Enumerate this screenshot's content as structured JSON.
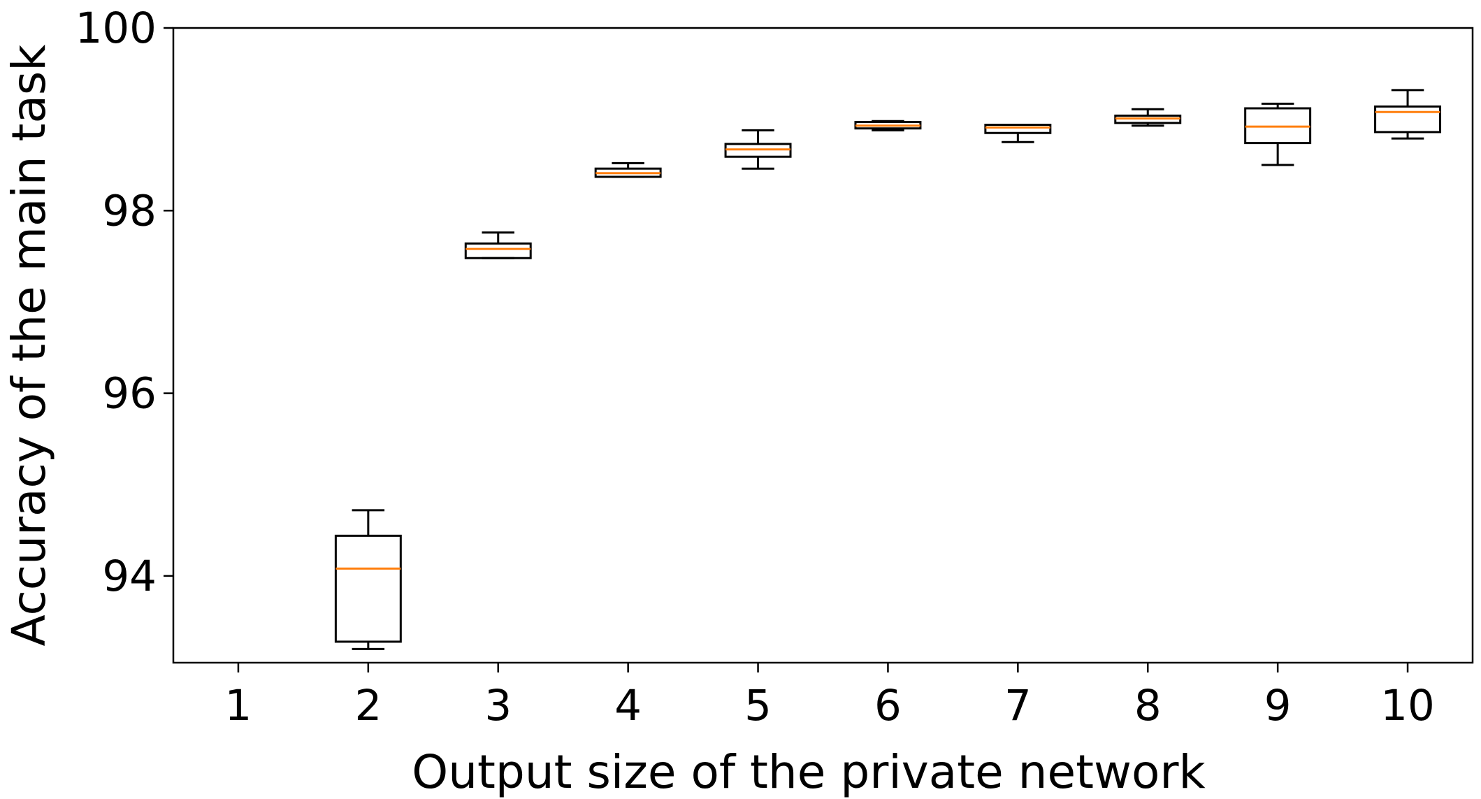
{
  "chart_data": {
    "type": "boxplot",
    "title": "",
    "xlabel": "Output size of the private network",
    "ylabel": "Accuracy of the main task",
    "categories": [
      "1",
      "2",
      "3",
      "4",
      "5",
      "6",
      "7",
      "8",
      "9",
      "10"
    ],
    "y_ticks": [
      "94",
      "96",
      "98",
      "100"
    ],
    "ylim": [
      93.05,
      100.0
    ],
    "grid": false,
    "colors": {
      "box": "#000000",
      "median": "#ff7f0e"
    },
    "boxes": [
      {
        "x": "1",
        "stats": null
      },
      {
        "x": "2",
        "whislo": 93.2,
        "q1": 93.28,
        "med": 94.08,
        "q3": 94.44,
        "whishi": 94.72
      },
      {
        "x": "3",
        "whislo": 97.48,
        "q1": 97.48,
        "med": 97.58,
        "q3": 97.64,
        "whishi": 97.76
      },
      {
        "x": "4",
        "whislo": 98.37,
        "q1": 98.37,
        "med": 98.41,
        "q3": 98.46,
        "whishi": 98.52
      },
      {
        "x": "5",
        "whislo": 98.46,
        "q1": 98.59,
        "med": 98.67,
        "q3": 98.73,
        "whishi": 98.88
      },
      {
        "x": "6",
        "whislo": 98.88,
        "q1": 98.9,
        "med": 98.93,
        "q3": 98.97,
        "whishi": 98.98
      },
      {
        "x": "7",
        "whislo": 98.75,
        "q1": 98.85,
        "med": 98.91,
        "q3": 98.94,
        "whishi": 98.94
      },
      {
        "x": "8",
        "whislo": 98.93,
        "q1": 98.96,
        "med": 99.01,
        "q3": 99.04,
        "whishi": 99.11
      },
      {
        "x": "9",
        "whislo": 98.5,
        "q1": 98.74,
        "med": 98.92,
        "q3": 99.12,
        "whishi": 99.17
      },
      {
        "x": "10",
        "whislo": 98.79,
        "q1": 98.86,
        "med": 99.08,
        "q3": 99.14,
        "whishi": 99.32
      }
    ]
  }
}
